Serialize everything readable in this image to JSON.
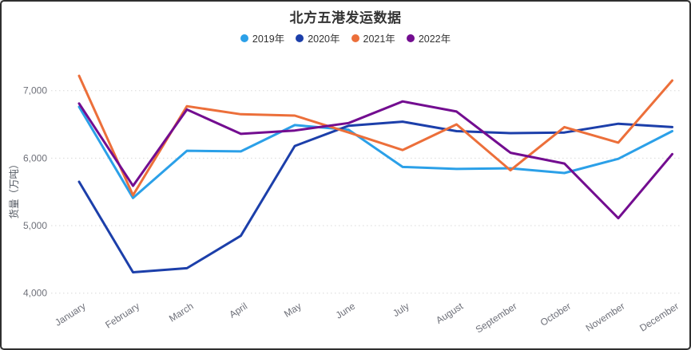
{
  "title": "北方五港发运数据",
  "y_axis_name": "货量（万吨）",
  "legend": [
    {
      "label": "2019年",
      "color": "#2BA0E8"
    },
    {
      "label": "2020年",
      "color": "#1C3FAA"
    },
    {
      "label": "2021年",
      "color": "#EC6F3A"
    },
    {
      "label": "2022年",
      "color": "#730D90"
    }
  ],
  "chart_data": {
    "type": "line",
    "title": "北方五港发运数据",
    "xlabel": "",
    "ylabel": "货量（万吨）",
    "categories": [
      "January",
      "February",
      "March",
      "April",
      "May",
      "June",
      "July",
      "August",
      "September",
      "October",
      "November",
      "December"
    ],
    "series": [
      {
        "name": "2019年",
        "color": "#2BA0E8",
        "values": [
          6760,
          5410,
          6110,
          6100,
          6490,
          6420,
          5870,
          5840,
          5850,
          5780,
          5990,
          6400
        ]
      },
      {
        "name": "2020年",
        "color": "#1C3FAA",
        "values": [
          5650,
          4310,
          4370,
          4850,
          6180,
          6480,
          6540,
          6400,
          6370,
          6380,
          6510,
          6460
        ]
      },
      {
        "name": "2021年",
        "color": "#EC6F3A",
        "values": [
          7220,
          5450,
          6770,
          6650,
          6630,
          6380,
          6120,
          6500,
          5820,
          6460,
          6230,
          7150
        ]
      },
      {
        "name": "2022年",
        "color": "#730D90",
        "values": [
          6810,
          5590,
          6720,
          6360,
          6410,
          6520,
          6840,
          6690,
          6080,
          5920,
          5110,
          6060
        ]
      }
    ],
    "ylim": [
      4000,
      7400
    ],
    "yticks": [
      4000,
      5000,
      6000,
      7000
    ],
    "ytick_labels": [
      "4,000",
      "5,000",
      "6,000",
      "7,000"
    ],
    "grid": "horizontal-dotted",
    "legend_position": "top"
  }
}
